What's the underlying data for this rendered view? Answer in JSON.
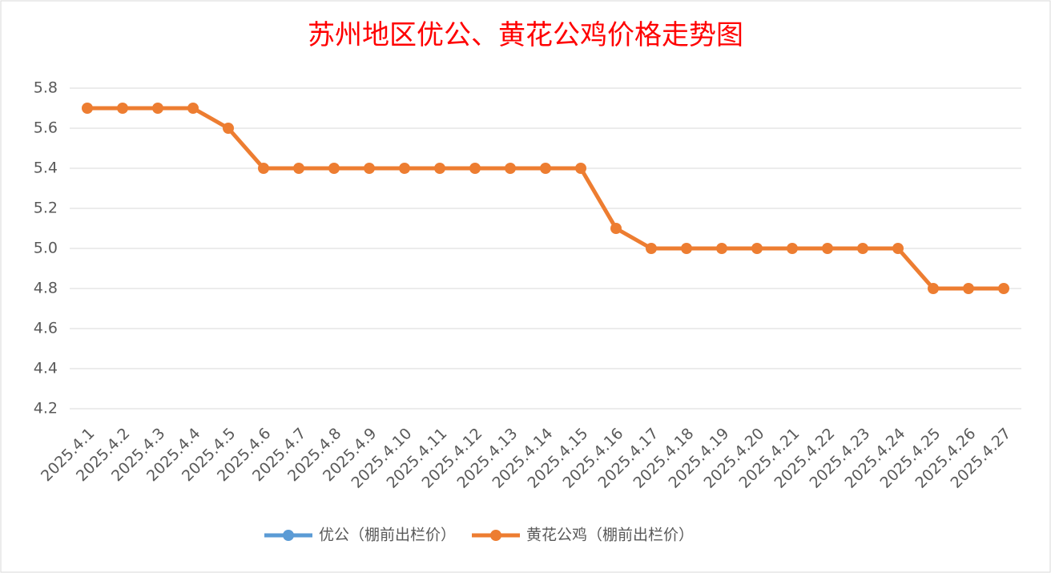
{
  "chart_data": {
    "type": "line",
    "title": "苏州地区优公、黄花公鸡价格走势图",
    "categories": [
      "2025.4.1",
      "2025.4.2",
      "2025.4.3",
      "2025.4.4",
      "2025.4.5",
      "2025.4.6",
      "2025.4.7",
      "2025.4.8",
      "2025.4.9",
      "2025.4.10",
      "2025.4.11",
      "2025.4.12",
      "2025.4.13",
      "2025.4.14",
      "2025.4.15",
      "2025.4.16",
      "2025.4.17",
      "2025.4.18",
      "2025.4.19",
      "2025.4.20",
      "2025.4.21",
      "2025.4.22",
      "2025.4.23",
      "2025.4.24",
      "2025.4.25",
      "2025.4.26",
      "2025.4.27"
    ],
    "series": [
      {
        "name": "优公（棚前出栏价）",
        "color": "#5b9bd5",
        "values": [
          null,
          null,
          null,
          null,
          null,
          null,
          null,
          null,
          null,
          null,
          null,
          null,
          null,
          null,
          null,
          null,
          null,
          null,
          null,
          null,
          null,
          null,
          null,
          null,
          null,
          null,
          null
        ]
      },
      {
        "name": "黄花公鸡（棚前出栏价）",
        "color": "#ed7d31",
        "values": [
          5.7,
          5.7,
          5.7,
          5.7,
          5.6,
          5.4,
          5.4,
          5.4,
          5.4,
          5.4,
          5.4,
          5.4,
          5.4,
          5.4,
          5.4,
          5.1,
          5.0,
          5.0,
          5.0,
          5.0,
          5.0,
          5.0,
          5.0,
          5.0,
          4.8,
          4.8,
          4.8
        ]
      }
    ],
    "ylim": [
      4.2,
      5.8
    ],
    "yticks": [
      4.2,
      4.4,
      4.6,
      4.8,
      {
        "value": 5,
        "label": "5.0"
      },
      5.2,
      5.4,
      5.6,
      5.8
    ],
    "grid": true,
    "legend": "bottom"
  }
}
